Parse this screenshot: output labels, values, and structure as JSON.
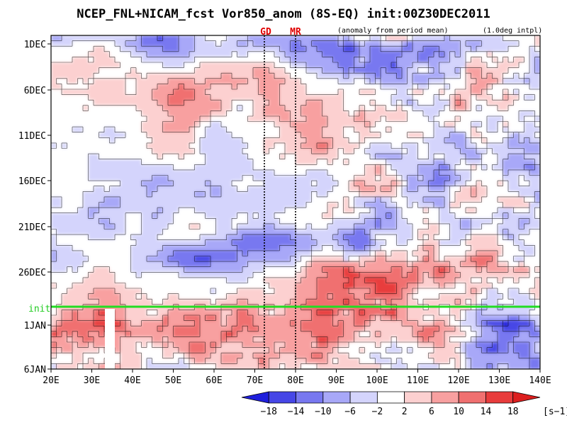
{
  "chart_data": {
    "type": "heatmap",
    "title": "NCEP_FNL+NICAM_fcst Vor850_anom (8S-EQ) init:00Z30DEC2011",
    "subtitle_left": "(anomaly from period mean)",
    "subtitle_right": "(1.0deg intpl)",
    "xlabel": "",
    "ylabel": "",
    "x_ticks": [
      "20E",
      "30E",
      "40E",
      "50E",
      "60E",
      "70E",
      "80E",
      "90E",
      "100E",
      "110E",
      "120E",
      "130E",
      "140E"
    ],
    "y_ticks": [
      "1DEC",
      "6DEC",
      "11DEC",
      "16DEC",
      "21DEC",
      "26DEC",
      "1JAN",
      "6JAN"
    ],
    "xlim": [
      20,
      140
    ],
    "markers": [
      {
        "label": "GD",
        "lon": 73
      },
      {
        "label": "MR",
        "lon": 80
      }
    ],
    "init_line": {
      "label": "init",
      "date": "30DEC2011"
    },
    "colorbar": {
      "levels": [
        "−18",
        "−14",
        "−10",
        "−6",
        "−2",
        "2",
        "6",
        "10",
        "14",
        "18"
      ],
      "colors": [
        "#1f1fdc",
        "#4646e6",
        "#7878f0",
        "#a8a8f8",
        "#d4d4fc",
        "#ffffff",
        "#fcd0d0",
        "#f8a0a0",
        "#f07070",
        "#e83c3c",
        "#dc1e1e"
      ],
      "unit": "[s−1]"
    },
    "anomaly_features": [
      {
        "lon_range": [
          88,
          100
        ],
        "date_range": [
          "6DEC",
          "14DEC"
        ],
        "sign": "positive"
      },
      {
        "lon_range": [
          44,
          52
        ],
        "date_range": [
          "7DEC",
          "11DEC"
        ],
        "sign": "positive"
      },
      {
        "lon_range": [
          42,
          56
        ],
        "date_range": [
          "24DEC",
          "28DEC"
        ],
        "sign": "negative"
      },
      {
        "lon_range": [
          84,
          110
        ],
        "date_range": [
          "21DEC",
          "26DEC"
        ],
        "sign": "negative"
      },
      {
        "lon_range": [
          100,
          130
        ],
        "date_range": [
          "22DEC",
          "29DEC"
        ],
        "sign": "positive"
      },
      {
        "lon_range": [
          50,
          100
        ],
        "date_range": [
          "27DEC",
          "6JAN"
        ],
        "sign": "positive"
      },
      {
        "lon_range": [
          125,
          140
        ],
        "date_range": [
          "1JAN",
          "6JAN"
        ],
        "sign": "negative"
      }
    ]
  }
}
